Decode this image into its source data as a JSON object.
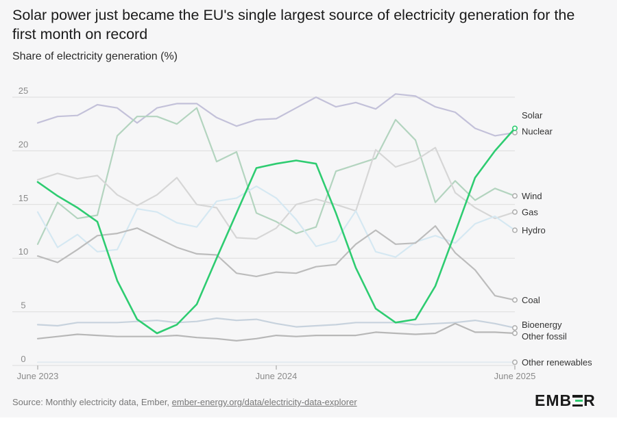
{
  "header": {
    "title": "Solar power just became the EU's single largest source of electricity generation for the first month on record",
    "subtitle": "Share of electricity generation (%)"
  },
  "footer": {
    "source_prefix": "Source: Monthly electricity data, Ember, ",
    "source_link": "ember-energy.org/data/electricity-data-explorer",
    "logo_left": "EMB",
    "logo_right": "R"
  },
  "colors": {
    "solar": "#2ecc71",
    "nuclear": "#c3c1d9",
    "wind": "#b3d4bf",
    "gas": "#d6d6d6",
    "hydro": "#d5e8f2",
    "coal": "#bcbcbc",
    "bioenergy": "#c7d2dd",
    "other_fossil": "#b7b7b7",
    "other_renewables": "#e3eaf0",
    "grid": "#dcdcdc",
    "axis_text": "#8a8a8a",
    "text": "#333333"
  },
  "chart_data": {
    "type": "line",
    "ylim": [
      0,
      25
    ],
    "yticks": [
      0,
      5,
      10,
      15,
      20,
      25
    ],
    "xtick_labels": [
      {
        "index": 0,
        "label": "June 2023"
      },
      {
        "index": 12,
        "label": "June 2024"
      },
      {
        "index": 24,
        "label": "June 2025"
      }
    ],
    "x": [
      "2023-06",
      "2023-07",
      "2023-08",
      "2023-09",
      "2023-10",
      "2023-11",
      "2023-12",
      "2024-01",
      "2024-02",
      "2024-03",
      "2024-04",
      "2024-05",
      "2024-06",
      "2024-07",
      "2024-08",
      "2024-09",
      "2024-10",
      "2024-11",
      "2024-12",
      "2025-01",
      "2025-02",
      "2025-03",
      "2025-04",
      "2025-05",
      "2025-06"
    ],
    "series": [
      {
        "name": "Nuclear",
        "key": "nuclear",
        "values": [
          22.6,
          23.2,
          23.3,
          24.3,
          24.0,
          22.6,
          24.0,
          24.4,
          24.4,
          23.1,
          22.3,
          22.9,
          23.0,
          24.0,
          25.0,
          24.1,
          24.5,
          23.9,
          25.3,
          25.1,
          24.1,
          23.6,
          22.1,
          21.4,
          21.7
        ]
      },
      {
        "name": "Wind",
        "key": "wind",
        "values": [
          11.3,
          15.2,
          13.7,
          14.0,
          21.4,
          23.2,
          23.2,
          22.5,
          24.0,
          19.0,
          19.9,
          14.2,
          13.4,
          12.3,
          12.9,
          18.1,
          18.7,
          19.3,
          22.9,
          21.0,
          15.2,
          17.2,
          15.4,
          16.5,
          15.8
        ]
      },
      {
        "name": "Gas",
        "key": "gas",
        "values": [
          17.3,
          17.9,
          17.4,
          17.7,
          15.9,
          14.9,
          15.9,
          17.5,
          15.0,
          14.7,
          11.9,
          11.8,
          12.8,
          15.0,
          15.5,
          15.0,
          14.4,
          20.1,
          18.5,
          19.1,
          20.3,
          16.1,
          14.7,
          13.7,
          14.3
        ]
      },
      {
        "name": "Hydro",
        "key": "hydro",
        "values": [
          14.3,
          11.0,
          12.2,
          10.6,
          10.8,
          14.6,
          14.3,
          13.3,
          12.9,
          15.3,
          15.6,
          16.7,
          15.6,
          13.6,
          11.1,
          11.6,
          14.4,
          10.6,
          10.1,
          11.5,
          12.1,
          11.4,
          13.2,
          13.9,
          12.6
        ]
      },
      {
        "name": "Coal",
        "key": "coal",
        "values": [
          10.2,
          9.6,
          10.8,
          12.1,
          12.3,
          12.8,
          11.9,
          11.0,
          10.4,
          10.3,
          8.6,
          8.3,
          8.7,
          8.6,
          9.2,
          9.4,
          11.3,
          12.6,
          11.3,
          11.4,
          13.0,
          10.5,
          8.9,
          6.5,
          6.1
        ]
      },
      {
        "name": "Bioenergy",
        "key": "bioenergy",
        "values": [
          3.8,
          3.7,
          4.0,
          4.0,
          4.0,
          4.1,
          4.2,
          4.0,
          4.1,
          4.4,
          4.2,
          4.3,
          3.9,
          3.6,
          3.7,
          3.8,
          4.0,
          4.0,
          4.0,
          3.8,
          3.9,
          4.0,
          4.2,
          3.9,
          3.5
        ]
      },
      {
        "name": "Other fossil",
        "key": "other_fossil",
        "values": [
          2.5,
          2.7,
          2.9,
          2.8,
          2.7,
          2.7,
          2.7,
          2.8,
          2.6,
          2.5,
          2.3,
          2.5,
          2.8,
          2.7,
          2.8,
          2.8,
          2.8,
          3.1,
          3.0,
          2.9,
          3.0,
          3.9,
          3.1,
          3.1,
          3.0
        ]
      },
      {
        "name": "Other renewables",
        "key": "other_renewables",
        "values": [
          0.3,
          0.3,
          0.3,
          0.3,
          0.3,
          0.3,
          0.3,
          0.3,
          0.3,
          0.3,
          0.3,
          0.3,
          0.3,
          0.3,
          0.3,
          0.3,
          0.3,
          0.3,
          0.3,
          0.3,
          0.3,
          0.3,
          0.3,
          0.3,
          0.3
        ]
      },
      {
        "name": "Solar",
        "key": "solar",
        "values": [
          17.1,
          15.8,
          14.7,
          13.4,
          7.9,
          4.3,
          3.0,
          3.8,
          5.7,
          10.0,
          14.2,
          18.4,
          18.8,
          19.1,
          18.8,
          14.2,
          9.1,
          5.3,
          4.0,
          4.3,
          7.4,
          12.4,
          17.5,
          20.0,
          22.1
        ]
      }
    ],
    "legend": [
      {
        "label": "Solar",
        "key": "solar",
        "label_y": 23.3
      },
      {
        "label": "Nuclear",
        "key": "nuclear",
        "label_y": 21.8
      },
      {
        "label": "Wind",
        "key": "wind",
        "label_y": 15.8
      },
      {
        "label": "Gas",
        "key": "gas",
        "label_y": 14.3
      },
      {
        "label": "Hydro",
        "key": "hydro",
        "label_y": 12.6
      },
      {
        "label": "Coal",
        "key": "coal",
        "label_y": 6.1
      },
      {
        "label": "Bioenergy",
        "key": "bioenergy",
        "label_y": 3.8
      },
      {
        "label": "Other fossil",
        "key": "other_fossil",
        "label_y": 2.7
      },
      {
        "label": "Other renewables",
        "key": "other_renewables",
        "label_y": 0.3
      }
    ]
  }
}
